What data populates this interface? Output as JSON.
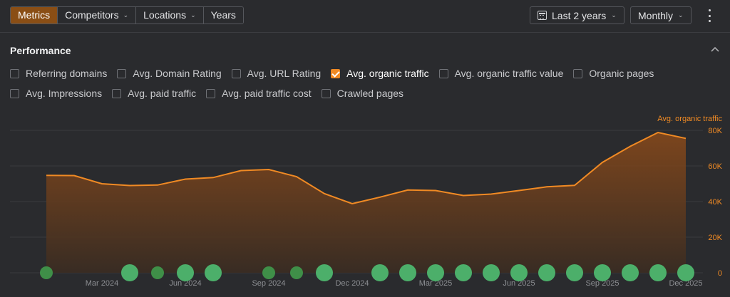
{
  "toolbar": {
    "tabs": [
      {
        "label": "Metrics",
        "active": true,
        "dropdown": false
      },
      {
        "label": "Competitors",
        "active": false,
        "dropdown": true
      },
      {
        "label": "Locations",
        "active": false,
        "dropdown": true
      },
      {
        "label": "Years",
        "active": false,
        "dropdown": false
      }
    ],
    "date_range": "Last 2 years",
    "frequency": "Monthly",
    "icons": {
      "date_range": "calendar-icon",
      "more": "more-vertical-icon",
      "dropdown": "chevron-down-icon",
      "collapse": "chevron-up-icon"
    }
  },
  "performance": {
    "title": "Performance",
    "metrics_row1": [
      {
        "label": "Referring domains",
        "checked": false
      },
      {
        "label": "Avg. Domain Rating",
        "checked": false
      },
      {
        "label": "Avg. URL Rating",
        "checked": false
      },
      {
        "label": "Avg. organic traffic",
        "checked": true
      },
      {
        "label": "Avg. organic traffic value",
        "checked": false
      },
      {
        "label": "Organic pages",
        "checked": false
      }
    ],
    "metrics_row2": [
      {
        "label": "Avg. Impressions",
        "checked": false
      },
      {
        "label": "Avg. paid traffic",
        "checked": false
      },
      {
        "label": "Avg. paid traffic cost",
        "checked": false
      },
      {
        "label": "Crawled pages",
        "checked": false
      }
    ]
  },
  "colors": {
    "accent": "#f08a24",
    "active_tab": "#8a4e15",
    "marker": "#4caf6a",
    "marker_small": "#3f8f48"
  },
  "chart_data": {
    "type": "area",
    "series": [
      {
        "name": "Avg. organic traffic",
        "values": [
          54700,
          54600,
          50000,
          49000,
          49300,
          52600,
          53500,
          57400,
          58000,
          54000,
          44500,
          38800,
          42500,
          46500,
          46200,
          43400,
          44200,
          46200,
          48300,
          49100,
          62000,
          71000,
          78800,
          75500
        ]
      }
    ],
    "x_ticks": [
      "Mar 2024",
      "Jun 2024",
      "Sep 2024",
      "Dec 2024",
      "Mar 2025",
      "Jun 2025",
      "Sep 2025",
      "Dec 2025"
    ],
    "y_ticks": [
      "80K",
      "60K",
      "40K",
      "20K",
      "0"
    ],
    "ylim": [
      0,
      90000
    ],
    "grid": true,
    "markers": [
      {
        "month": 0,
        "size": "small"
      },
      {
        "month": 3,
        "size": "large"
      },
      {
        "month": 4,
        "size": "small"
      },
      {
        "month": 5,
        "size": "large"
      },
      {
        "month": 6,
        "size": "large"
      },
      {
        "month": 8,
        "size": "small"
      },
      {
        "month": 9,
        "size": "small"
      },
      {
        "month": 10,
        "size": "large"
      },
      {
        "month": 12,
        "size": "large"
      },
      {
        "month": 13,
        "size": "large"
      },
      {
        "month": 14,
        "size": "large"
      },
      {
        "month": 15,
        "size": "large"
      },
      {
        "month": 16,
        "size": "large"
      },
      {
        "month": 17,
        "size": "large"
      },
      {
        "month": 18,
        "size": "large"
      },
      {
        "month": 19,
        "size": "large"
      },
      {
        "month": 20,
        "size": "large"
      },
      {
        "month": 21,
        "size": "large"
      },
      {
        "month": 22,
        "size": "large"
      },
      {
        "month": 23,
        "size": "large"
      }
    ]
  }
}
